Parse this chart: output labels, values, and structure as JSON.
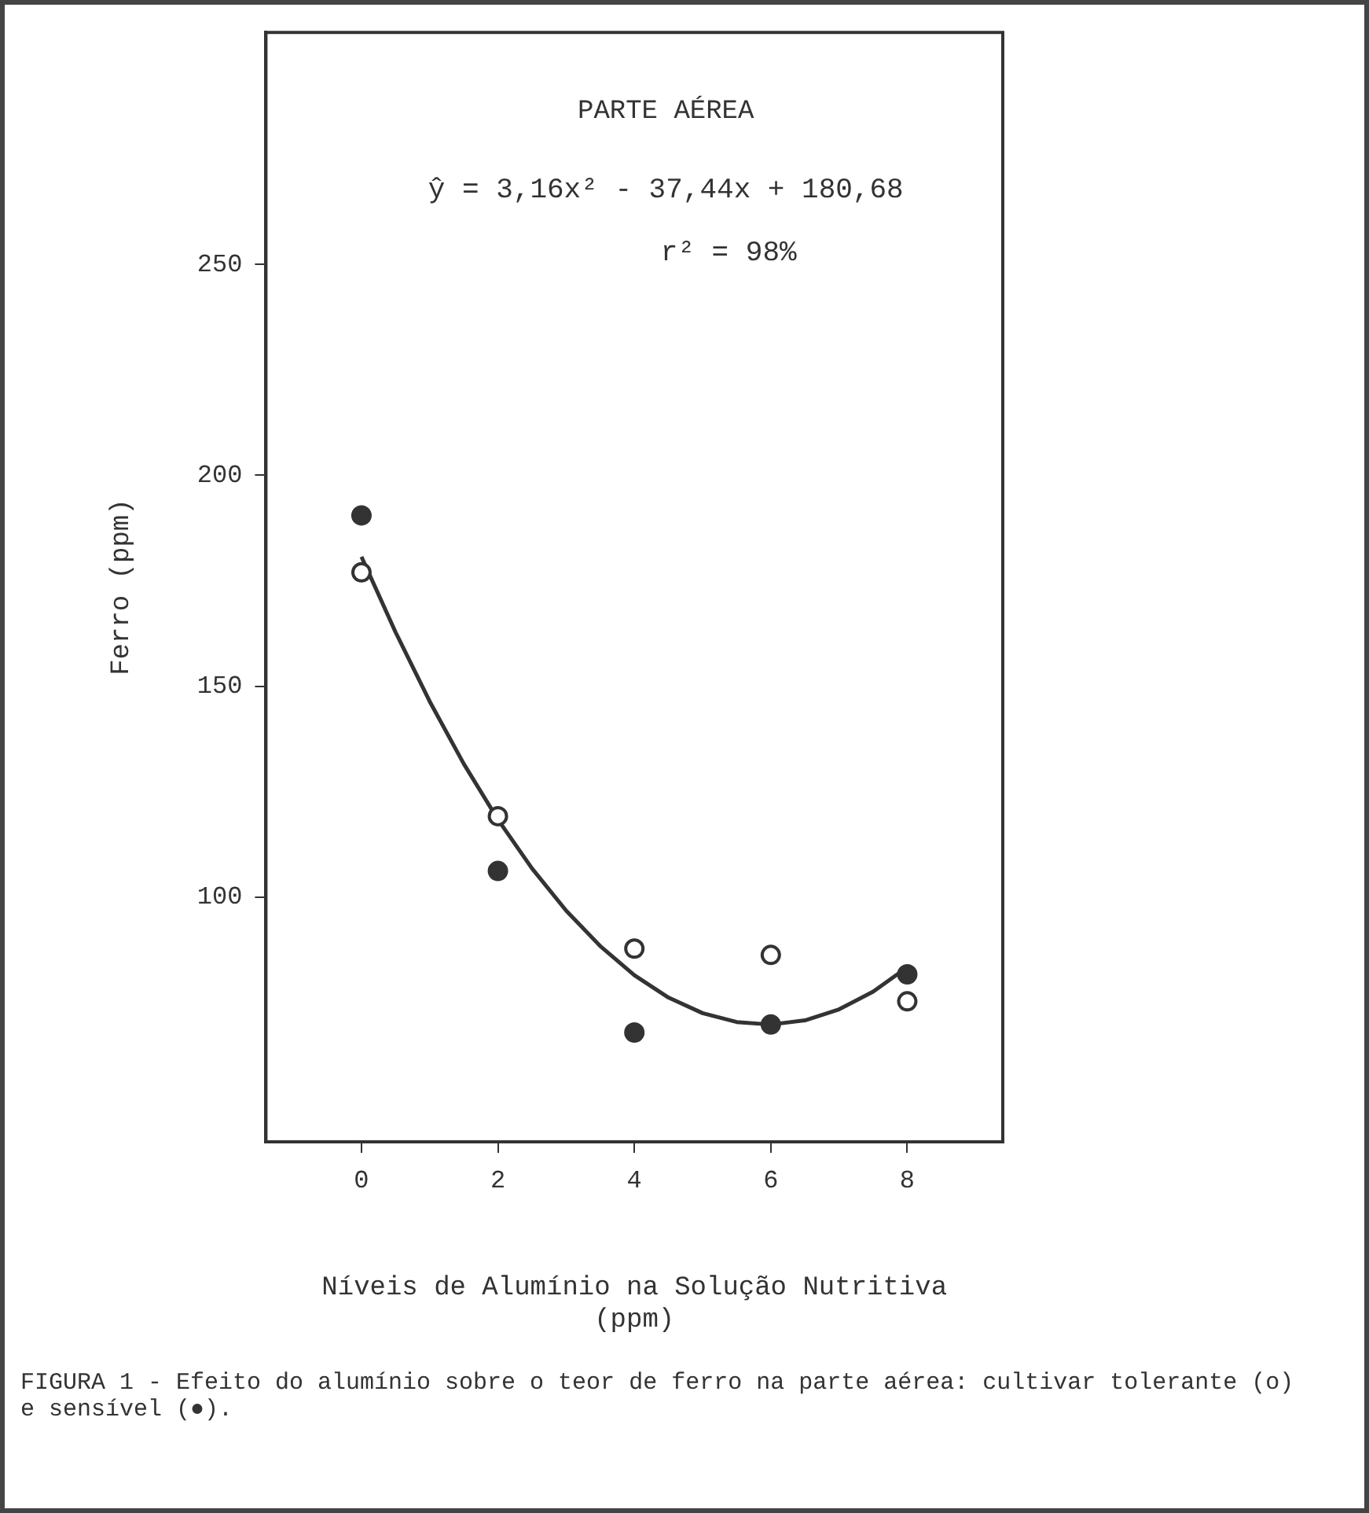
{
  "chart_data": {
    "type": "scatter",
    "title": "PARTE AÉREA",
    "xlabel": "Níveis de Alumínio na Solução Nutritiva\n(ppm)",
    "ylabel": "Ferro (ppm)",
    "annotations": [
      "ŷ = 3,16x² - 37,44x + 180,68",
      "r² = 98%",
      "FIGURA 1 - Efeito do alumínio sobre o teor de ferro na parte aérea: cultivar tolerante (o) e sensível (●)."
    ],
    "xlim": [
      -1.4,
      9.4
    ],
    "xticks": [
      0,
      2,
      4,
      6,
      8
    ],
    "ylim": [
      42,
      305
    ],
    "yticks": [
      100,
      150,
      200,
      250
    ],
    "grid": false,
    "legend": false,
    "series": [
      {
        "marker": "circle",
        "color": "#ffffff",
        "x": [
          0,
          2,
          4,
          6,
          8
        ],
        "values": [
          177,
          119.2,
          87.8,
          86.3,
          75.3
        ]
      },
      {
        "marker": "circle",
        "color": "#333333",
        "x": [
          0,
          2,
          4,
          6,
          8
        ],
        "values": [
          190.5,
          106.2,
          67.9,
          69.8,
          81.7
        ]
      },
      {
        "type": "line",
        "marker": "none",
        "color": "#333333",
        "x": [
          0,
          0.5,
          1,
          1.5,
          2,
          2.5,
          3,
          3.5,
          4,
          4.5,
          5,
          5.5,
          6,
          6.5,
          7,
          7.5,
          8
        ],
        "values": [
          180.7,
          162.8,
          146.4,
          131.6,
          118.4,
          106.8,
          96.8,
          88.4,
          81.5,
          76.2,
          72.5,
          70.4,
          69.8,
          70.8,
          73.4,
          77.6,
          83.4
        ]
      }
    ]
  }
}
